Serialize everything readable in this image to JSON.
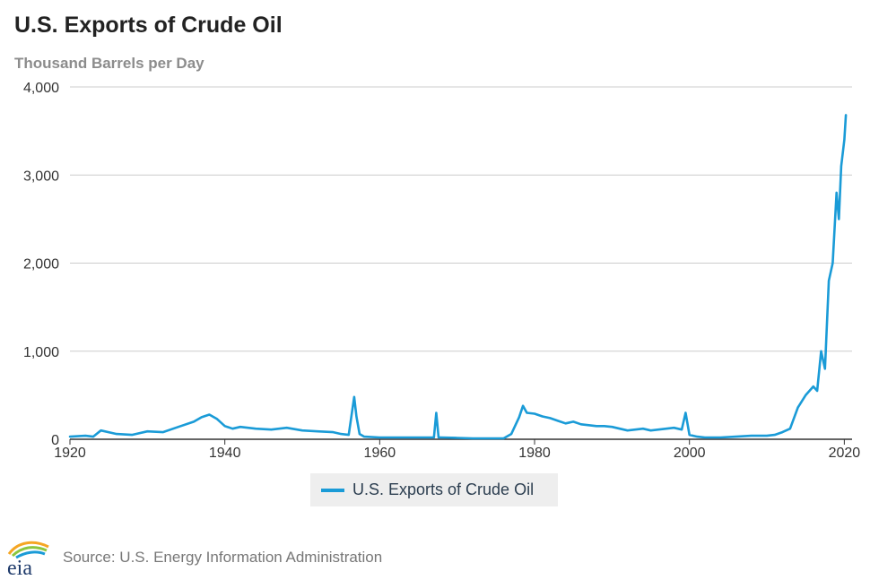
{
  "header": {
    "title": "U.S. Exports of Crude Oil",
    "subtitle": "Thousand Barrels per Day"
  },
  "footer": {
    "source": "Source: U.S. Energy Information Administration",
    "logo_text": "eia"
  },
  "colors": {
    "series": "#1a9bd7",
    "grid": "#cccccc",
    "axis": "#333333"
  },
  "chart_data": {
    "type": "line",
    "title": "U.S. Exports of Crude Oil",
    "ylabel": "Thousand Barrels per Day",
    "xlabel": "",
    "xlim": [
      1920,
      2021
    ],
    "ylim": [
      0,
      4000
    ],
    "x_ticks": [
      1920,
      1940,
      1960,
      1980,
      2000,
      2020
    ],
    "x_tick_labels": [
      "1920",
      "1940",
      "1960",
      "1980",
      "2000",
      "2020"
    ],
    "y_ticks": [
      0,
      1000,
      2000,
      3000,
      4000
    ],
    "y_tick_labels": [
      "0",
      "1,000",
      "2,000",
      "3,000",
      "4,000"
    ],
    "grid": true,
    "legend": "bottom-center",
    "series": [
      {
        "name": "U.S. Exports of Crude Oil",
        "x": [
          1920,
          1922,
          1923,
          1924,
          1926,
          1928,
          1930,
          1932,
          1934,
          1936,
          1937,
          1938,
          1939,
          1940,
          1941,
          1942,
          1944,
          1946,
          1948,
          1950,
          1952,
          1954,
          1955,
          1956,
          1956.7,
          1957,
          1957.4,
          1958,
          1960,
          1962,
          1964,
          1966,
          1967,
          1967.3,
          1967.6,
          1968,
          1970,
          1972,
          1974,
          1976,
          1977,
          1978,
          1978.5,
          1979,
          1980,
          1981,
          1982,
          1983,
          1984,
          1985,
          1986,
          1987,
          1988,
          1989,
          1990,
          1991,
          1992,
          1993,
          1994,
          1995,
          1996,
          1997,
          1998,
          1999,
          1999.5,
          2000,
          2001,
          2002,
          2004,
          2006,
          2008,
          2009,
          2010,
          2011,
          2012,
          2013,
          2014,
          2015,
          2016,
          2016.5,
          2017,
          2017.5,
          2018,
          2018.5,
          2019,
          2019.3,
          2019.6,
          2020,
          2020.2
        ],
        "y": [
          30,
          40,
          30,
          100,
          60,
          50,
          90,
          80,
          140,
          200,
          250,
          280,
          230,
          150,
          120,
          140,
          120,
          110,
          130,
          100,
          90,
          80,
          60,
          50,
          480,
          260,
          60,
          30,
          20,
          20,
          20,
          20,
          20,
          300,
          20,
          20,
          15,
          10,
          10,
          10,
          60,
          250,
          380,
          300,
          290,
          260,
          240,
          210,
          180,
          200,
          170,
          160,
          150,
          150,
          140,
          120,
          100,
          110,
          120,
          100,
          110,
          120,
          130,
          110,
          300,
          50,
          30,
          20,
          20,
          30,
          40,
          40,
          40,
          50,
          80,
          120,
          360,
          500,
          600,
          550,
          1000,
          800,
          1800,
          2000,
          2800,
          2500,
          3100,
          3400,
          3680
        ]
      }
    ]
  }
}
